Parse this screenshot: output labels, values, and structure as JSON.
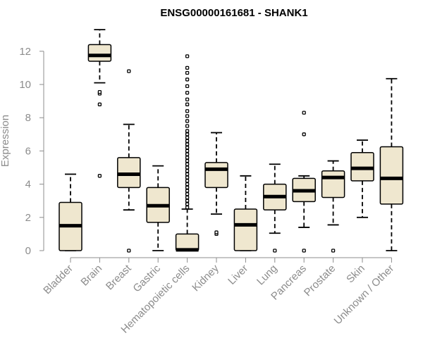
{
  "chart_data": {
    "type": "box",
    "title": "ENSG00000161681 - SHANK1",
    "xlabel": "",
    "ylabel": "Expression",
    "ylim": [
      0,
      12.5
    ],
    "yticks": [
      "0",
      "2",
      "4",
      "6",
      "8",
      "10",
      "12"
    ],
    "box_fill": "#efe7cf",
    "categories": [
      "Bladder",
      "Brain",
      "Breast",
      "Gastric",
      "Hematopoietic cells",
      "Kidney",
      "Liver",
      "Lung",
      "Pancreas",
      "Prostate",
      "Skin",
      "Unknown / Other"
    ],
    "boxes": [
      {
        "category": "Bladder",
        "min": 0,
        "q1": 0,
        "median": 1.5,
        "q3": 2.9,
        "max": 4.6,
        "outliers": []
      },
      {
        "category": "Brain",
        "min": 10.1,
        "q1": 11.4,
        "median": 11.75,
        "q3": 12.4,
        "max": 13.3,
        "outliers": [
          4.5,
          8.8,
          9.45,
          9.55
        ]
      },
      {
        "category": "Breast",
        "min": 2.45,
        "q1": 3.8,
        "median": 4.6,
        "q3": 5.6,
        "max": 7.6,
        "outliers": [
          0,
          10.8
        ]
      },
      {
        "category": "Gastric",
        "min": 0,
        "q1": 1.7,
        "median": 2.7,
        "q3": 3.8,
        "max": 5.1,
        "outliers": []
      },
      {
        "category": "Hematopoietic cells",
        "min": 0,
        "q1": 0,
        "median": 0.05,
        "q3": 1.0,
        "max": 2.5,
        "outliers": [
          2.6,
          2.8,
          3.0,
          3.2,
          3.4,
          3.6,
          3.8,
          4.0,
          4.2,
          4.4,
          4.6,
          4.8,
          5.0,
          5.2,
          5.4,
          5.6,
          5.8,
          6.0,
          6.2,
          6.4,
          6.6,
          6.8,
          7.0,
          7.2,
          7.5,
          7.8,
          8.1,
          8.4,
          8.8,
          9.1,
          9.5,
          9.9,
          10.3,
          10.7,
          11.0,
          11.7
        ]
      },
      {
        "category": "Kidney",
        "min": 2.2,
        "q1": 3.8,
        "median": 4.9,
        "q3": 5.3,
        "max": 7.1,
        "outliers": [
          1.0,
          1.1
        ]
      },
      {
        "category": "Liver",
        "min": 0,
        "q1": 0,
        "median": 1.55,
        "q3": 2.5,
        "max": 4.5,
        "outliers": []
      },
      {
        "category": "Lung",
        "min": 1.05,
        "q1": 2.45,
        "median": 3.25,
        "q3": 4.0,
        "max": 5.2,
        "outliers": [
          0
        ]
      },
      {
        "category": "Pancreas",
        "min": 1.4,
        "q1": 2.95,
        "median": 3.6,
        "q3": 4.35,
        "max": 4.5,
        "outliers": [
          0,
          7.0,
          8.3
        ]
      },
      {
        "category": "Prostate",
        "min": 1.55,
        "q1": 3.2,
        "median": 4.4,
        "q3": 4.8,
        "max": 5.4,
        "outliers": [
          0
        ]
      },
      {
        "category": "Skin",
        "min": 2.0,
        "q1": 4.2,
        "median": 4.95,
        "q3": 5.9,
        "max": 6.65,
        "outliers": []
      },
      {
        "category": "Unknown / Other",
        "min": 0,
        "q1": 2.8,
        "median": 4.35,
        "q3": 6.25,
        "max": 10.35,
        "outliers": []
      }
    ]
  }
}
